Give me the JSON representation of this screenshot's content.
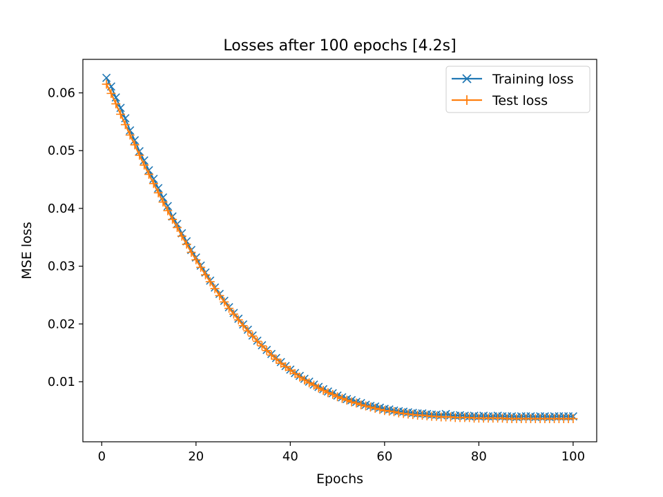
{
  "chart_data": {
    "type": "line",
    "title": "Losses after 100 epochs [4.2s]",
    "xlabel": "Epochs",
    "ylabel": "MSE loss",
    "xlim": [
      -4,
      105
    ],
    "ylim": [
      -0.0004,
      0.0658
    ],
    "xticks": [
      0,
      20,
      40,
      60,
      80,
      100
    ],
    "yticks": [
      0.01,
      0.02,
      0.03,
      0.04,
      0.05,
      0.06
    ],
    "xtick_labels": [
      "0",
      "20",
      "40",
      "60",
      "80",
      "100"
    ],
    "ytick_labels": [
      "0.01",
      "0.02",
      "0.03",
      "0.04",
      "0.05",
      "0.06"
    ],
    "grid": false,
    "legend_position": "top-right",
    "series": [
      {
        "name": "Training loss",
        "color": "#1f77b4",
        "marker": "x",
        "x": [
          1,
          2,
          3,
          4,
          5,
          6,
          7,
          8,
          9,
          10,
          11,
          12,
          13,
          14,
          15,
          16,
          17,
          18,
          19,
          20,
          21,
          22,
          23,
          24,
          25,
          26,
          27,
          28,
          29,
          30,
          31,
          32,
          33,
          34,
          35,
          36,
          37,
          38,
          39,
          40,
          41,
          42,
          43,
          44,
          45,
          46,
          47,
          48,
          49,
          50,
          51,
          52,
          53,
          54,
          55,
          56,
          57,
          58,
          59,
          60,
          61,
          62,
          63,
          64,
          65,
          66,
          67,
          68,
          69,
          70,
          71,
          72,
          73,
          74,
          75,
          76,
          77,
          78,
          79,
          80,
          81,
          82,
          83,
          84,
          85,
          86,
          87,
          88,
          89,
          90,
          91,
          92,
          93,
          94,
          95,
          96,
          97,
          98,
          99,
          100
        ],
        "values": [
          0.0626,
          0.0611,
          0.0592,
          0.0574,
          0.0556,
          0.0535,
          0.0518,
          0.0499,
          0.0483,
          0.0466,
          0.0451,
          0.0435,
          0.0419,
          0.0404,
          0.0386,
          0.0373,
          0.0357,
          0.0343,
          0.0328,
          0.0315,
          0.0301,
          0.0289,
          0.0275,
          0.0263,
          0.0252,
          0.024,
          0.0229,
          0.0219,
          0.0209,
          0.0199,
          0.019,
          0.018,
          0.0171,
          0.0163,
          0.0155,
          0.0148,
          0.0141,
          0.0134,
          0.0127,
          0.0121,
          0.0115,
          0.011,
          0.0105,
          0.01,
          0.0095,
          0.0091,
          0.0087,
          0.0083,
          0.008,
          0.0076,
          0.0073,
          0.007,
          0.0068,
          0.0065,
          0.0063,
          0.006,
          0.0058,
          0.0057,
          0.0055,
          0.0053,
          0.0052,
          0.005,
          0.0049,
          0.0048,
          0.0047,
          0.0046,
          0.0045,
          0.0045,
          0.0044,
          0.0043,
          0.0043,
          0.0042,
          0.0044,
          0.0042,
          0.0041,
          0.0042,
          0.0041,
          0.004,
          0.0041,
          0.004,
          0.0041,
          0.004,
          0.004,
          0.0041,
          0.004,
          0.004,
          0.004,
          0.0039,
          0.004,
          0.004,
          0.004,
          0.0039,
          0.004,
          0.004,
          0.0039,
          0.004,
          0.004,
          0.004,
          0.004,
          0.004
        ]
      },
      {
        "name": "Test loss",
        "color": "#ff7f0e",
        "marker": "+",
        "x": [
          1,
          2,
          3,
          4,
          5,
          6,
          7,
          8,
          9,
          10,
          11,
          12,
          13,
          14,
          15,
          16,
          17,
          18,
          19,
          20,
          21,
          22,
          23,
          24,
          25,
          26,
          27,
          28,
          29,
          30,
          31,
          32,
          33,
          34,
          35,
          36,
          37,
          38,
          39,
          40,
          41,
          42,
          43,
          44,
          45,
          46,
          47,
          48,
          49,
          50,
          51,
          52,
          53,
          54,
          55,
          56,
          57,
          58,
          59,
          60,
          61,
          62,
          63,
          64,
          65,
          66,
          67,
          68,
          69,
          70,
          71,
          72,
          73,
          74,
          75,
          76,
          77,
          78,
          79,
          80,
          81,
          82,
          83,
          84,
          85,
          86,
          87,
          88,
          89,
          90,
          91,
          92,
          93,
          94,
          95,
          96,
          97,
          98,
          99,
          100
        ],
        "values": [
          0.0615,
          0.0599,
          0.0581,
          0.0563,
          0.0545,
          0.0527,
          0.051,
          0.0492,
          0.0475,
          0.0459,
          0.0443,
          0.0427,
          0.0411,
          0.0396,
          0.0381,
          0.0367,
          0.0352,
          0.0338,
          0.0324,
          0.0311,
          0.0298,
          0.0285,
          0.0273,
          0.0261,
          0.0249,
          0.0238,
          0.0227,
          0.0217,
          0.0207,
          0.0197,
          0.0188,
          0.0179,
          0.017,
          0.0162,
          0.0154,
          0.0146,
          0.0139,
          0.0132,
          0.0126,
          0.012,
          0.0114,
          0.0108,
          0.0103,
          0.0098,
          0.0094,
          0.0089,
          0.0085,
          0.0081,
          0.0078,
          0.0074,
          0.0071,
          0.0068,
          0.0065,
          0.0063,
          0.006,
          0.0058,
          0.0056,
          0.0054,
          0.0052,
          0.005,
          0.0049,
          0.0048,
          0.0046,
          0.0045,
          0.0044,
          0.0043,
          0.0042,
          0.0042,
          0.0041,
          0.004,
          0.004,
          0.0039,
          0.0039,
          0.0039,
          0.0038,
          0.0038,
          0.0038,
          0.0038,
          0.0037,
          0.0037,
          0.0037,
          0.0037,
          0.0037,
          0.0037,
          0.0037,
          0.0036,
          0.0036,
          0.0036,
          0.0036,
          0.0036,
          0.0036,
          0.0036,
          0.0036,
          0.0036,
          0.0036,
          0.0036,
          0.0036,
          0.0036,
          0.0036,
          0.0036
        ]
      }
    ]
  }
}
